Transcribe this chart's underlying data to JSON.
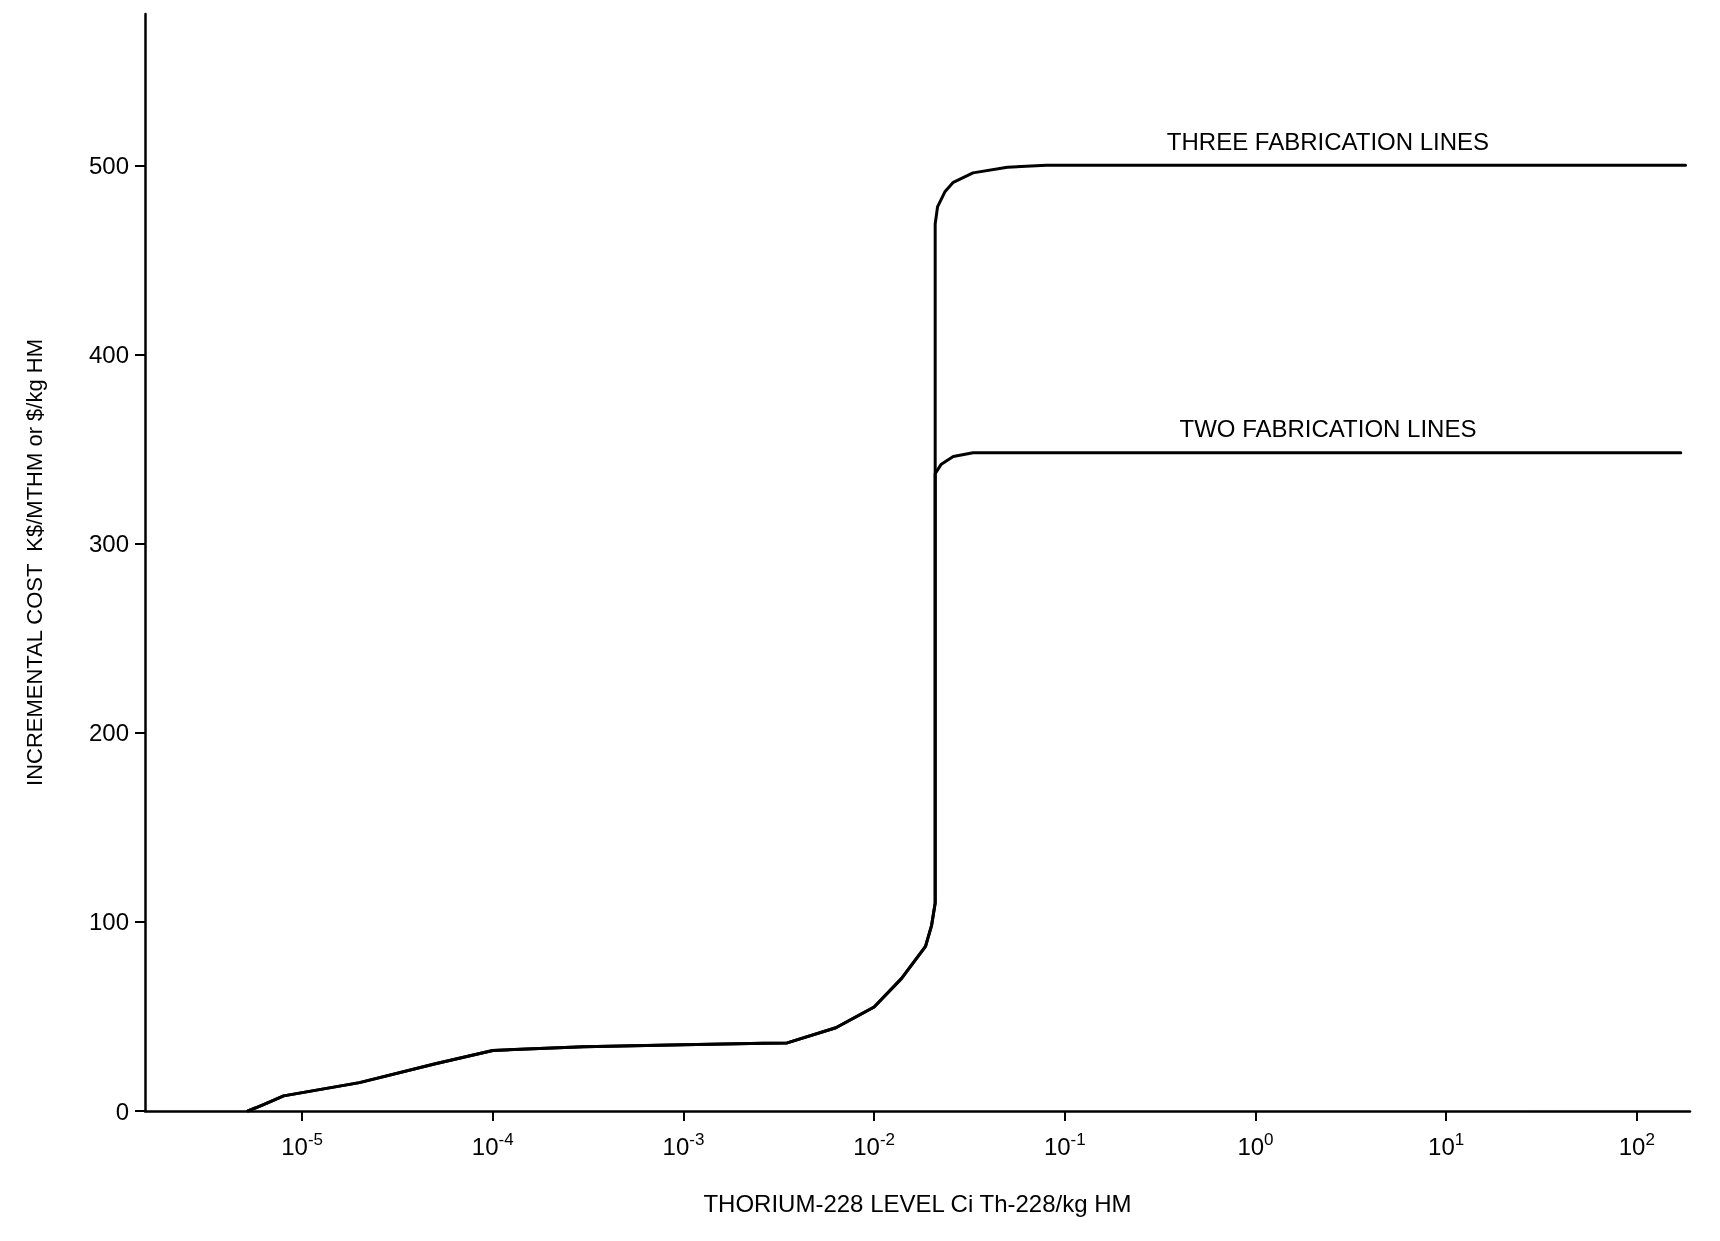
{
  "chart_data": {
    "type": "line",
    "xlabel": "THORIUM-228 LEVEL Ci Th-228/kg HM",
    "ylabel": "INCREMENTAL COST  K$/MTHM or $/kg HM",
    "log": "x",
    "xlim": [
      1.5e-06,
      190
    ],
    "xticks": [
      {
        "value": 1e-05,
        "label": "10$^{-5}$"
      },
      {
        "value": 0.0001,
        "label": "10$^{-4}$"
      },
      {
        "value": 0.001,
        "label": "10$^{-3}$"
      },
      {
        "value": 0.01,
        "label": "10$^{-2}$"
      },
      {
        "value": 0.1,
        "label": "10$^{-1}$"
      },
      {
        "value": 1,
        "label": "10$^{0}$"
      },
      {
        "value": 10,
        "label": "10$^{1}$"
      },
      {
        "value": 100,
        "label": "10$^{2}$"
      }
    ],
    "ylim": [
      0,
      580
    ],
    "yticks": [
      0,
      100,
      200,
      300,
      400,
      500
    ],
    "grid": false,
    "marker": "none",
    "line_style": "solid",
    "series": [
      {
        "color": "#000000",
        "x": [
          5.2e-06,
          6.5e-06,
          8e-06,
          2e-05,
          5e-05,
          0.0001,
          0.0003,
          0.001,
          0.0035,
          0.0063,
          0.01,
          0.0139,
          0.0186,
          0.02,
          0.0209,
          0.0209,
          0.0215,
          0.0235,
          0.026,
          0.033,
          0.05,
          0.08,
          0.2,
          1,
          10,
          180
        ],
        "values": [
          0,
          4,
          8,
          15,
          25,
          32,
          34,
          35,
          36,
          44,
          55,
          70,
          87,
          98,
          110,
          469,
          478,
          486,
          491,
          496,
          499,
          500,
          500,
          500,
          500,
          500
        ]
      },
      {
        "color": "#000000",
        "x": [
          5.2e-06,
          6.5e-06,
          8e-06,
          2e-05,
          5e-05,
          0.0001,
          0.0003,
          0.001,
          0.0035,
          0.0063,
          0.01,
          0.0139,
          0.0186,
          0.02,
          0.0209,
          0.0209,
          0.0225,
          0.026,
          0.033,
          0.05,
          0.2,
          1,
          10,
          170
        ],
        "values": [
          0,
          4,
          8,
          15,
          25,
          32,
          34,
          35,
          36,
          44,
          55,
          70,
          87,
          98,
          110,
          337,
          342,
          346,
          348,
          348,
          348,
          348,
          348,
          348
        ]
      }
    ],
    "annotations": [
      {
        "text": "THREE FABRICATION LINES",
        "x": 2.4,
        "y": 500
      },
      {
        "text": "TWO FABRICATION LINES",
        "x": 2.4,
        "y": 348
      }
    ]
  }
}
